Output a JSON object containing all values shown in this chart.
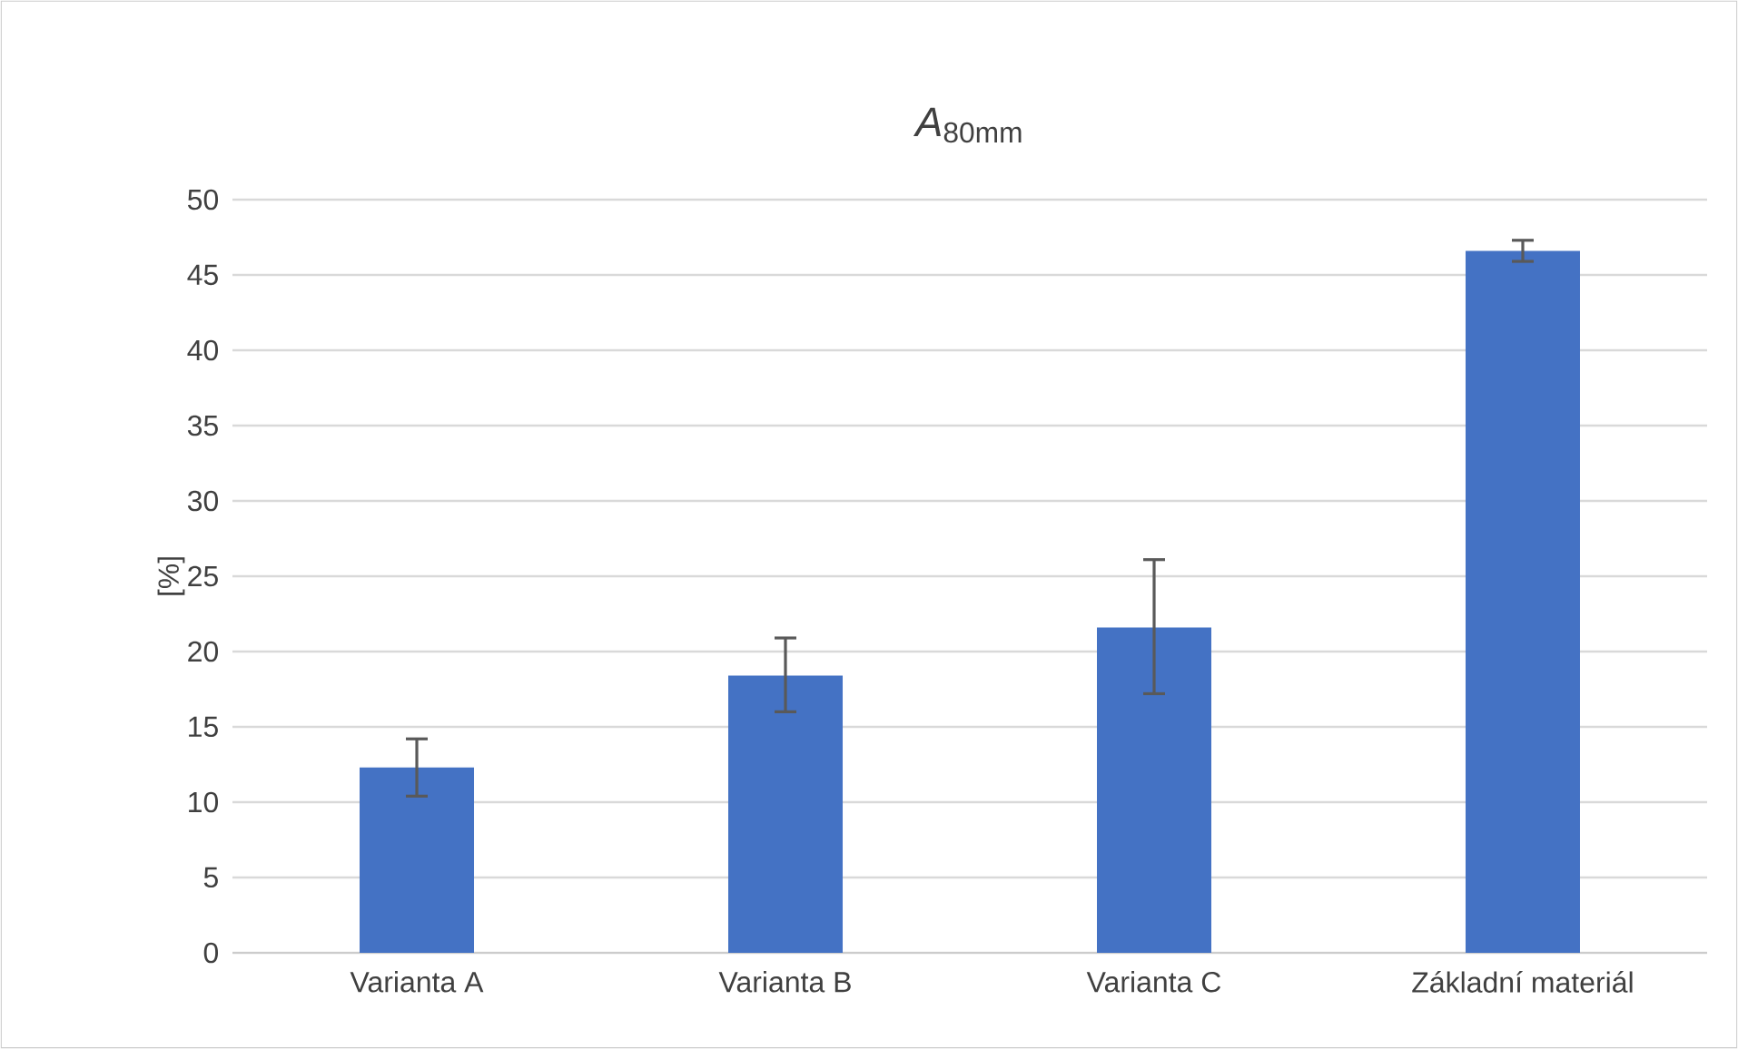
{
  "chart_data": {
    "type": "bar",
    "title": "*A*$_{80mm}$",
    "ylabel": "[%]",
    "categories": [
      "Varianta A",
      "Varianta B",
      "Varianta C",
      "Základní materiál"
    ],
    "values": [
      12.3,
      18.4,
      21.6,
      46.6
    ],
    "errors": [
      [
        10.4,
        14.2
      ],
      [
        16.0,
        20.9
      ],
      [
        17.2,
        26.1
      ],
      [
        45.9,
        47.3
      ]
    ],
    "color": "#4472c4",
    "ylim": [
      0,
      50
    ],
    "yticks": [
      0,
      5,
      10,
      15,
      20,
      25,
      30,
      35,
      40,
      45,
      50
    ],
    "grid": "y"
  }
}
